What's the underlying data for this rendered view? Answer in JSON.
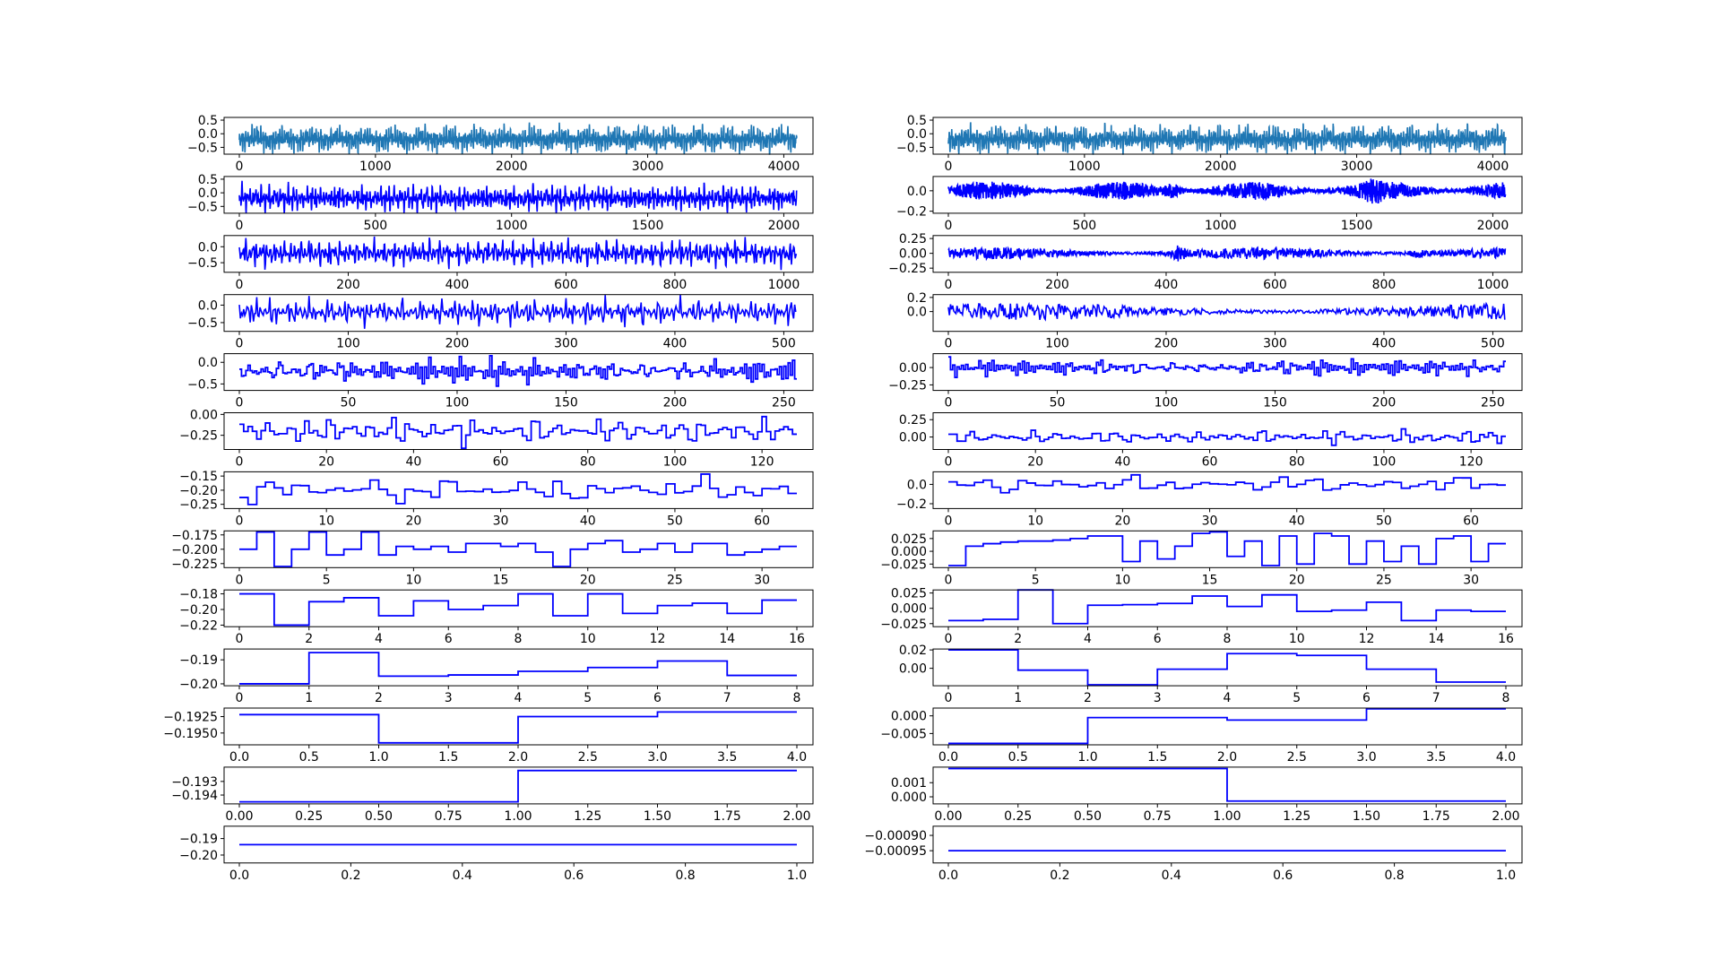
{
  "figure": {
    "columns": 2,
    "rows_per_column": 13
  },
  "chart_data": [
    {
      "type": "line",
      "panel": "left-1",
      "style": "signal",
      "n": 4096,
      "xlim": [
        0,
        4096
      ],
      "ylim": [
        -0.75,
        0.6
      ],
      "xticks": [
        "0",
        "1000",
        "2000",
        "3000",
        "4000"
      ],
      "yticks": [
        "-0.5",
        "0.0",
        "0.5"
      ],
      "color": "#1f77b4",
      "seed": 11,
      "amp": 0.55,
      "base": -0.2
    },
    {
      "type": "line",
      "panel": "left-2",
      "style": "signal",
      "n": 2048,
      "xlim": [
        0,
        2048
      ],
      "ylim": [
        -0.75,
        0.6
      ],
      "xticks": [
        "0",
        "500",
        "1000",
        "1500",
        "2000"
      ],
      "yticks": [
        "-0.5",
        "0.0",
        "0.5"
      ],
      "color": "#0000ff",
      "seed": 12,
      "amp": 0.55,
      "base": -0.2
    },
    {
      "type": "line",
      "panel": "left-3",
      "style": "signal",
      "n": 1024,
      "xlim": [
        0,
        1024
      ],
      "ylim": [
        -0.8,
        0.35
      ],
      "xticks": [
        "0",
        "200",
        "400",
        "600",
        "800",
        "1000"
      ],
      "yticks": [
        "-0.5",
        "0.0"
      ],
      "color": "#0000ff",
      "seed": 13,
      "amp": 0.5,
      "base": -0.2
    },
    {
      "type": "line",
      "panel": "left-4",
      "style": "signal",
      "n": 512,
      "xlim": [
        0,
        512
      ],
      "ylim": [
        -0.75,
        0.3
      ],
      "xticks": [
        "0",
        "100",
        "200",
        "300",
        "400",
        "500"
      ],
      "yticks": [
        "-0.5",
        "0.0"
      ],
      "color": "#0000ff",
      "seed": 14,
      "amp": 0.45,
      "base": -0.2
    },
    {
      "type": "line",
      "panel": "left-5",
      "style": "step",
      "n": 256,
      "xlim": [
        0,
        256
      ],
      "ylim": [
        -0.65,
        0.2
      ],
      "xticks": [
        "0",
        "50",
        "100",
        "150",
        "200",
        "250"
      ],
      "yticks": [
        "-0.5",
        "0.0"
      ],
      "color": "#0000ff",
      "seed": 15,
      "amp": 0.35,
      "base": -0.2
    },
    {
      "type": "line",
      "panel": "left-6",
      "style": "step",
      "n": 128,
      "xlim": [
        0,
        128
      ],
      "ylim": [
        -0.42,
        0.02
      ],
      "xticks": [
        "0",
        "20",
        "40",
        "60",
        "80",
        "100",
        "120"
      ],
      "yticks": [
        "-0.25",
        "0.00"
      ],
      "color": "#0000ff",
      "seed": 16,
      "amp": 0.19,
      "base": -0.2
    },
    {
      "type": "line",
      "panel": "left-7",
      "style": "step",
      "n": 64,
      "xlim": [
        0,
        64
      ],
      "ylim": [
        -0.265,
        -0.135
      ],
      "xticks": [
        "0",
        "10",
        "20",
        "30",
        "40",
        "50",
        "60"
      ],
      "yticks": [
        "-0.25",
        "-0.20",
        "-0.15"
      ],
      "color": "#0000ff",
      "seed": 17,
      "amp": 0.055,
      "base": -0.2
    },
    {
      "type": "line",
      "panel": "left-8",
      "style": "step",
      "n": 32,
      "xlim": [
        0,
        32
      ],
      "ylim": [
        -0.232,
        -0.168
      ],
      "xticks": [
        "0",
        "5",
        "10",
        "15",
        "20",
        "25",
        "30"
      ],
      "yticks": [
        "-0.225",
        "-0.200",
        "-0.175"
      ],
      "color": "#0000ff",
      "values": [
        -0.2,
        -0.17,
        -0.23,
        -0.2,
        -0.17,
        -0.21,
        -0.2,
        -0.17,
        -0.21,
        -0.195,
        -0.2,
        -0.195,
        -0.205,
        -0.19,
        -0.19,
        -0.195,
        -0.19,
        -0.205,
        -0.23,
        -0.2,
        -0.19,
        -0.185,
        -0.205,
        -0.2,
        -0.19,
        -0.205,
        -0.19,
        -0.19,
        -0.21,
        -0.205,
        -0.2,
        -0.195
      ],
      "last": -0.195
    },
    {
      "type": "line",
      "panel": "left-9",
      "style": "step",
      "n": 16,
      "xlim": [
        0,
        16
      ],
      "ylim": [
        -0.222,
        -0.175
      ],
      "xticks": [
        "0",
        "2",
        "4",
        "6",
        "8",
        "10",
        "12",
        "14",
        "16"
      ],
      "yticks": [
        "-0.22",
        "-0.20",
        "-0.18"
      ],
      "color": "#0000ff",
      "values": [
        -0.18,
        -0.22,
        -0.19,
        -0.185,
        -0.208,
        -0.189,
        -0.2,
        -0.195,
        -0.18,
        -0.208,
        -0.18,
        -0.205,
        -0.195,
        -0.192,
        -0.205,
        -0.188
      ],
      "last": -0.188
    },
    {
      "type": "line",
      "panel": "left-10",
      "style": "step",
      "n": 8,
      "xlim": [
        0,
        8
      ],
      "ylim": [
        -0.2008,
        -0.1855
      ],
      "xticks": [
        "0",
        "1",
        "2",
        "3",
        "4",
        "5",
        "6",
        "7",
        "8"
      ],
      "yticks": [
        "-0.20",
        "-0.19"
      ],
      "color": "#0000ff",
      "values": [
        -0.2,
        -0.187,
        -0.1968,
        -0.1963,
        -0.1948,
        -0.1932,
        -0.1905,
        -0.1965
      ],
      "last": -0.1965
    },
    {
      "type": "line",
      "panel": "left-11",
      "style": "step",
      "n": 4,
      "xlim": [
        0,
        4
      ],
      "ylim": [
        -0.1968,
        -0.1912
      ],
      "xticks": [
        "0.0",
        "0.5",
        "1.0",
        "1.5",
        "2.0",
        "2.5",
        "3.0",
        "3.5",
        "4.0"
      ],
      "yticks": [
        "-0.1950",
        "-0.1925"
      ],
      "color": "#0000ff",
      "values": [
        -0.1922,
        -0.1965,
        -0.1925,
        -0.1918
      ],
      "last": -0.1918
    },
    {
      "type": "line",
      "panel": "left-12",
      "style": "step",
      "n": 2,
      "xlim": [
        0,
        2
      ],
      "ylim": [
        -0.19465,
        -0.19195
      ],
      "xticks": [
        "0.00",
        "0.25",
        "0.50",
        "0.75",
        "1.00",
        "1.25",
        "1.50",
        "1.75",
        "2.00"
      ],
      "yticks": [
        "-0.194",
        "-0.193"
      ],
      "color": "#0000ff",
      "values": [
        -0.1945,
        -0.1922
      ],
      "last": -0.1922
    },
    {
      "type": "line",
      "panel": "left-13",
      "style": "step",
      "n": 1,
      "xlim": [
        0,
        1
      ],
      "ylim": [
        -0.2048,
        -0.1825
      ],
      "xticks": [
        "0.0",
        "0.2",
        "0.4",
        "0.6",
        "0.8",
        "1.0"
      ],
      "yticks": [
        "-0.20",
        "-0.19"
      ],
      "color": "#0000ff",
      "values": [
        -0.1937
      ],
      "last": -0.1937
    },
    {
      "type": "line",
      "panel": "right-1",
      "style": "signal",
      "n": 4096,
      "xlim": [
        0,
        4096
      ],
      "ylim": [
        -0.75,
        0.6
      ],
      "xticks": [
        "0",
        "1000",
        "2000",
        "3000",
        "4000"
      ],
      "yticks": [
        "-0.5",
        "0.0",
        "0.5"
      ],
      "color": "#1f77b4",
      "seed": 21,
      "amp": 0.55,
      "base": -0.2
    },
    {
      "type": "line",
      "panel": "right-2",
      "style": "noise",
      "n": 2048,
      "xlim": [
        0,
        2048
      ],
      "ylim": [
        -0.22,
        0.14
      ],
      "xticks": [
        "0",
        "500",
        "1000",
        "1500",
        "2000"
      ],
      "yticks": [
        "-0.2",
        "0.0"
      ],
      "color": "#0000ff",
      "seed": 22,
      "amp": 0.09,
      "base": 0,
      "burst": [
        [
          830,
          0.9
        ],
        [
          1560,
          0.3
        ]
      ]
    },
    {
      "type": "line",
      "panel": "right-3",
      "style": "noise",
      "n": 1024,
      "xlim": [
        0,
        1024
      ],
      "ylim": [
        -0.32,
        0.3
      ],
      "xticks": [
        "0",
        "200",
        "400",
        "600",
        "800",
        "1000"
      ],
      "yticks": [
        "-0.25",
        "0.00",
        "0.25"
      ],
      "color": "#0000ff",
      "seed": 23,
      "amp": 0.1,
      "base": 0,
      "burst": [
        [
          420,
          1
        ],
        [
          860,
          0.8
        ]
      ]
    },
    {
      "type": "line",
      "panel": "right-4",
      "style": "noise",
      "n": 512,
      "xlim": [
        0,
        512
      ],
      "ylim": [
        -0.28,
        0.24
      ],
      "xticks": [
        "0",
        "100",
        "200",
        "300",
        "400",
        "500"
      ],
      "yticks": [
        "0.0",
        "0.2"
      ],
      "color": "#0000ff",
      "seed": 24,
      "amp": 0.12,
      "base": 0
    },
    {
      "type": "line",
      "panel": "right-5",
      "style": "step",
      "n": 256,
      "xlim": [
        0,
        256
      ],
      "ylim": [
        -0.33,
        0.2
      ],
      "xticks": [
        "0",
        "50",
        "100",
        "150",
        "200",
        "250"
      ],
      "yticks": [
        "-0.25",
        "0.00"
      ],
      "color": "#0000ff",
      "seed": 25,
      "amp": 0.14,
      "base": 0
    },
    {
      "type": "line",
      "panel": "right-6",
      "style": "step",
      "n": 128,
      "xlim": [
        0,
        128
      ],
      "ylim": [
        -0.18,
        0.35
      ],
      "xticks": [
        "0",
        "20",
        "40",
        "60",
        "80",
        "100",
        "120"
      ],
      "yticks": [
        "0.00",
        "0.25"
      ],
      "color": "#0000ff",
      "seed": 26,
      "amp": 0.12,
      "base": 0
    },
    {
      "type": "line",
      "panel": "right-7",
      "style": "step",
      "n": 64,
      "xlim": [
        0,
        64
      ],
      "ylim": [
        -0.25,
        0.13
      ],
      "xticks": [
        "0",
        "10",
        "20",
        "30",
        "40",
        "50",
        "60"
      ],
      "yticks": [
        "-0.2",
        "0.0"
      ],
      "color": "#0000ff",
      "seed": 27,
      "amp": 0.1,
      "base": 0
    },
    {
      "type": "line",
      "panel": "right-8",
      "style": "step",
      "n": 32,
      "xlim": [
        0,
        32
      ],
      "ylim": [
        -0.032,
        0.04
      ],
      "xticks": [
        "0",
        "5",
        "10",
        "15",
        "20",
        "25",
        "30"
      ],
      "yticks": [
        "-0.025",
        "0.000",
        "0.025"
      ],
      "color": "#0000ff",
      "values": [
        -0.028,
        0.01,
        0.015,
        0.018,
        0.02,
        0.02,
        0.022,
        0.025,
        0.03,
        0.03,
        -0.02,
        0.02,
        -0.015,
        0.01,
        0.035,
        0.038,
        -0.01,
        0.02,
        -0.028,
        0.03,
        -0.025,
        0.035,
        0.03,
        -0.025,
        0.02,
        -0.02,
        0.01,
        -0.025,
        0.025,
        0.03,
        -0.02,
        0.015
      ],
      "last": 0.015
    },
    {
      "type": "line",
      "panel": "right-9",
      "style": "step",
      "n": 16,
      "xlim": [
        0,
        16
      ],
      "ylim": [
        -0.03,
        0.03
      ],
      "xticks": [
        "0",
        "2",
        "4",
        "6",
        "8",
        "10",
        "12",
        "14",
        "16"
      ],
      "yticks": [
        "-0.025",
        "0.000",
        "0.025"
      ],
      "color": "#0000ff",
      "values": [
        -0.02,
        -0.018,
        0.03,
        -0.025,
        0.005,
        0.006,
        0.008,
        0.02,
        0.003,
        0.022,
        -0.005,
        -0.003,
        0.01,
        -0.02,
        -0.003,
        -0.005
      ],
      "last": -0.005
    },
    {
      "type": "line",
      "panel": "right-10",
      "style": "step",
      "n": 8,
      "xlim": [
        0,
        8
      ],
      "ylim": [
        -0.019,
        0.021
      ],
      "xticks": [
        "0",
        "1",
        "2",
        "3",
        "4",
        "5",
        "6",
        "7",
        "8"
      ],
      "yticks": [
        "0.00",
        "0.02"
      ],
      "color": "#0000ff",
      "values": [
        0.02,
        -0.002,
        -0.018,
        -0.001,
        0.016,
        0.014,
        -0.001,
        -0.015
      ],
      "last": -0.015
    },
    {
      "type": "line",
      "panel": "right-11",
      "style": "step",
      "n": 4,
      "xlim": [
        0,
        4
      ],
      "ylim": [
        -0.0082,
        0.0022
      ],
      "xticks": [
        "0.0",
        "0.5",
        "1.0",
        "1.5",
        "2.0",
        "2.5",
        "3.0",
        "3.5",
        "4.0"
      ],
      "yticks": [
        "-0.005",
        "0.000"
      ],
      "color": "#0000ff",
      "values": [
        -0.0078,
        -0.0005,
        -0.0012,
        0.002
      ],
      "last": 0.002
    },
    {
      "type": "line",
      "panel": "right-12",
      "style": "step",
      "n": 2,
      "xlim": [
        0,
        2
      ],
      "ylim": [
        -0.0005,
        0.0021
      ],
      "xticks": [
        "0.00",
        "0.25",
        "0.50",
        "0.75",
        "1.00",
        "1.25",
        "1.50",
        "1.75",
        "2.00"
      ],
      "yticks": [
        "0.000",
        "0.001"
      ],
      "color": "#0000ff",
      "values": [
        0.002,
        -0.0003
      ],
      "last": -0.0003
    },
    {
      "type": "line",
      "panel": "right-13",
      "style": "step",
      "n": 1,
      "xlim": [
        0,
        1
      ],
      "ylim": [
        -0.00099,
        -0.00087
      ],
      "xticks": [
        "0.0",
        "0.2",
        "0.4",
        "0.6",
        "0.8",
        "1.0"
      ],
      "yticks": [
        "-0.00095",
        "-0.00090"
      ],
      "color": "#0000ff",
      "values": [
        -0.00095
      ],
      "last": -0.00095
    }
  ]
}
